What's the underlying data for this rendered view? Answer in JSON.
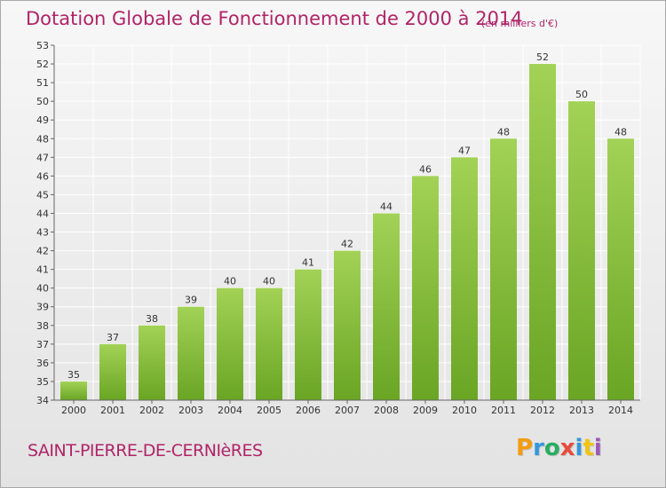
{
  "header": {
    "title": "Dotation Globale de Fonctionnement de 2000 à 2014",
    "unit": "(en milliers d'€)"
  },
  "footer": {
    "commune": "SAINT-PIERRE-DE-CERNIèRES",
    "logo_letters": [
      "P",
      "r",
      "o",
      "x",
      "i",
      "t",
      "i"
    ],
    "logo_colors": [
      "#f39c12",
      "#3498db",
      "#27ae60",
      "#e74c3c",
      "#3498db",
      "#f1c40f",
      "#9b59b6"
    ]
  },
  "colors": {
    "bar_top": "#a2d256",
    "bar_bottom": "#6aa524",
    "grid": "#ffffff",
    "text": "#333333",
    "accent": "#b02467"
  },
  "chart_data": {
    "type": "bar",
    "categories": [
      "2000",
      "2001",
      "2002",
      "2003",
      "2004",
      "2005",
      "2006",
      "2007",
      "2008",
      "2009",
      "2010",
      "2011",
      "2012",
      "2013",
      "2014"
    ],
    "values": [
      35,
      37,
      38,
      39,
      40,
      40,
      41,
      42,
      44,
      46,
      47,
      48,
      52,
      50,
      48
    ],
    "ylim": [
      34,
      53
    ],
    "yticks": [
      34,
      35,
      36,
      37,
      38,
      39,
      40,
      41,
      42,
      43,
      44,
      45,
      46,
      47,
      48,
      49,
      50,
      51,
      52,
      53
    ],
    "grid": true,
    "data_labels": true,
    "xlabel": "",
    "ylabel": ""
  }
}
